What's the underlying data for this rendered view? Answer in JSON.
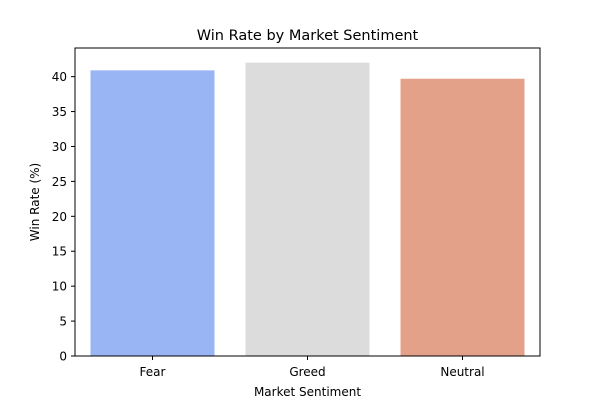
{
  "chart_data": {
    "type": "bar",
    "title": "Win Rate by Market Sentiment",
    "xlabel": "Market Sentiment",
    "ylabel": "Win Rate (%)",
    "categories": [
      "Fear",
      "Greed",
      "Neutral"
    ],
    "values": [
      40.9,
      42.0,
      39.7
    ],
    "colors": [
      "#9ab5f3",
      "#dcdcdc",
      "#e4a18a"
    ],
    "ylim": [
      0,
      44.1
    ],
    "yticks": [
      0,
      5,
      10,
      15,
      20,
      25,
      30,
      35,
      40
    ],
    "grid": false,
    "legend": "none"
  }
}
